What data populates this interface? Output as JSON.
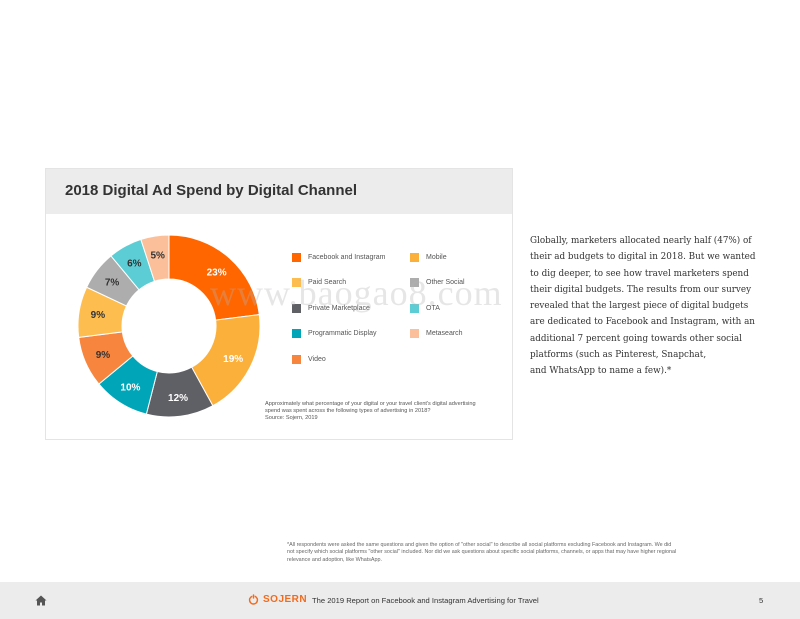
{
  "card": {
    "title": "2018 Digital Ad Spend by Digital Channel",
    "caption_line1": "Approximately what percentage of your digital or your travel client's digital advertising",
    "caption_line2": "spend was spent across the following types of advertising in 2018?",
    "caption_source": "Source: Sojern, 2019"
  },
  "chart_data": {
    "type": "pie",
    "donut": true,
    "title": "2018 Digital Ad Spend by Digital Channel",
    "legend_position": "right",
    "slices": [
      {
        "label": "Facebook and Instagram",
        "value": 23,
        "value_label": "23%",
        "color": "#ff6600",
        "label_color": "#ffffff"
      },
      {
        "label": "Mobile",
        "value": 19,
        "value_label": "19%",
        "color": "#fbb03b",
        "label_color": "#ffffff"
      },
      {
        "label": "Private Marketplace",
        "value": 12,
        "value_label": "12%",
        "color": "#5f5f66",
        "label_color": "#ffffff"
      },
      {
        "label": "Programmatic Display",
        "value": 10,
        "value_label": "10%",
        "color": "#00a6b8",
        "label_color": "#ffffff"
      },
      {
        "label": "Video",
        "value": 9,
        "value_label": "9%",
        "color": "#f7853e",
        "label_color": "#333333"
      },
      {
        "label": "Paid Search",
        "value": 9,
        "value_label": "9%",
        "color": "#fdbd4f",
        "label_color": "#333333"
      },
      {
        "label": "Other Social",
        "value": 7,
        "value_label": "7%",
        "color": "#adadad",
        "label_color": "#333333"
      },
      {
        "label": "OTA",
        "value": 6,
        "value_label": "6%",
        "color": "#5ccdd4",
        "label_color": "#333333"
      },
      {
        "label": "Metasearch",
        "value": 5,
        "value_label": "5%",
        "color": "#fbc09a",
        "label_color": "#333333"
      }
    ]
  },
  "legend": {
    "items": [
      {
        "label": "Facebook and Instagram",
        "color": "#ff6600"
      },
      {
        "label": "Mobile",
        "color": "#fbb03b"
      },
      {
        "label": "Paid Search",
        "color": "#fdbd4f"
      },
      {
        "label": "Other Social",
        "color": "#adadad"
      },
      {
        "label": "Private Marketplace",
        "color": "#5f5f66"
      },
      {
        "label": "OTA",
        "color": "#5ccdd4"
      },
      {
        "label": "Programmatic Display",
        "color": "#00a6b8"
      },
      {
        "label": "Metasearch",
        "color": "#fbc09a"
      },
      {
        "label": "Video",
        "color": "#f7853e"
      }
    ]
  },
  "body": {
    "lines": [
      "Globally, marketers allocated nearly half (47%) of",
      "their ad budgets to digital in 2018. But we wanted",
      "to dig deeper, to see how travel marketers spend",
      "their digital budgets. The results from our survey",
      "revealed that the largest piece of digital budgets",
      "are dedicated to Facebook and Instagram, with an",
      "additional 7 percent going towards other social",
      "platforms (such as Pinterest, Snapchat,",
      "and WhatsApp to name a few).*"
    ]
  },
  "watermark": "www.baogao8.com",
  "footnote": {
    "line1": "*All respondents were asked the same questions and given the option of \"other social\" to describe all social platforms excluding Facebook and Instagram. We did",
    "line2": "not specify which social platforms \"other social\" included. Nor did we ask questions about specific social platforms, channels, or apps that may have higher regional",
    "line3": "relevance and adoption, like WhatsApp."
  },
  "footer": {
    "home_icon": "home-icon",
    "brand": "SOJERN",
    "brand_color": "#f26b1d",
    "title": "The 2019 Report on Facebook and Instagram Advertising for Travel",
    "page": "5"
  }
}
